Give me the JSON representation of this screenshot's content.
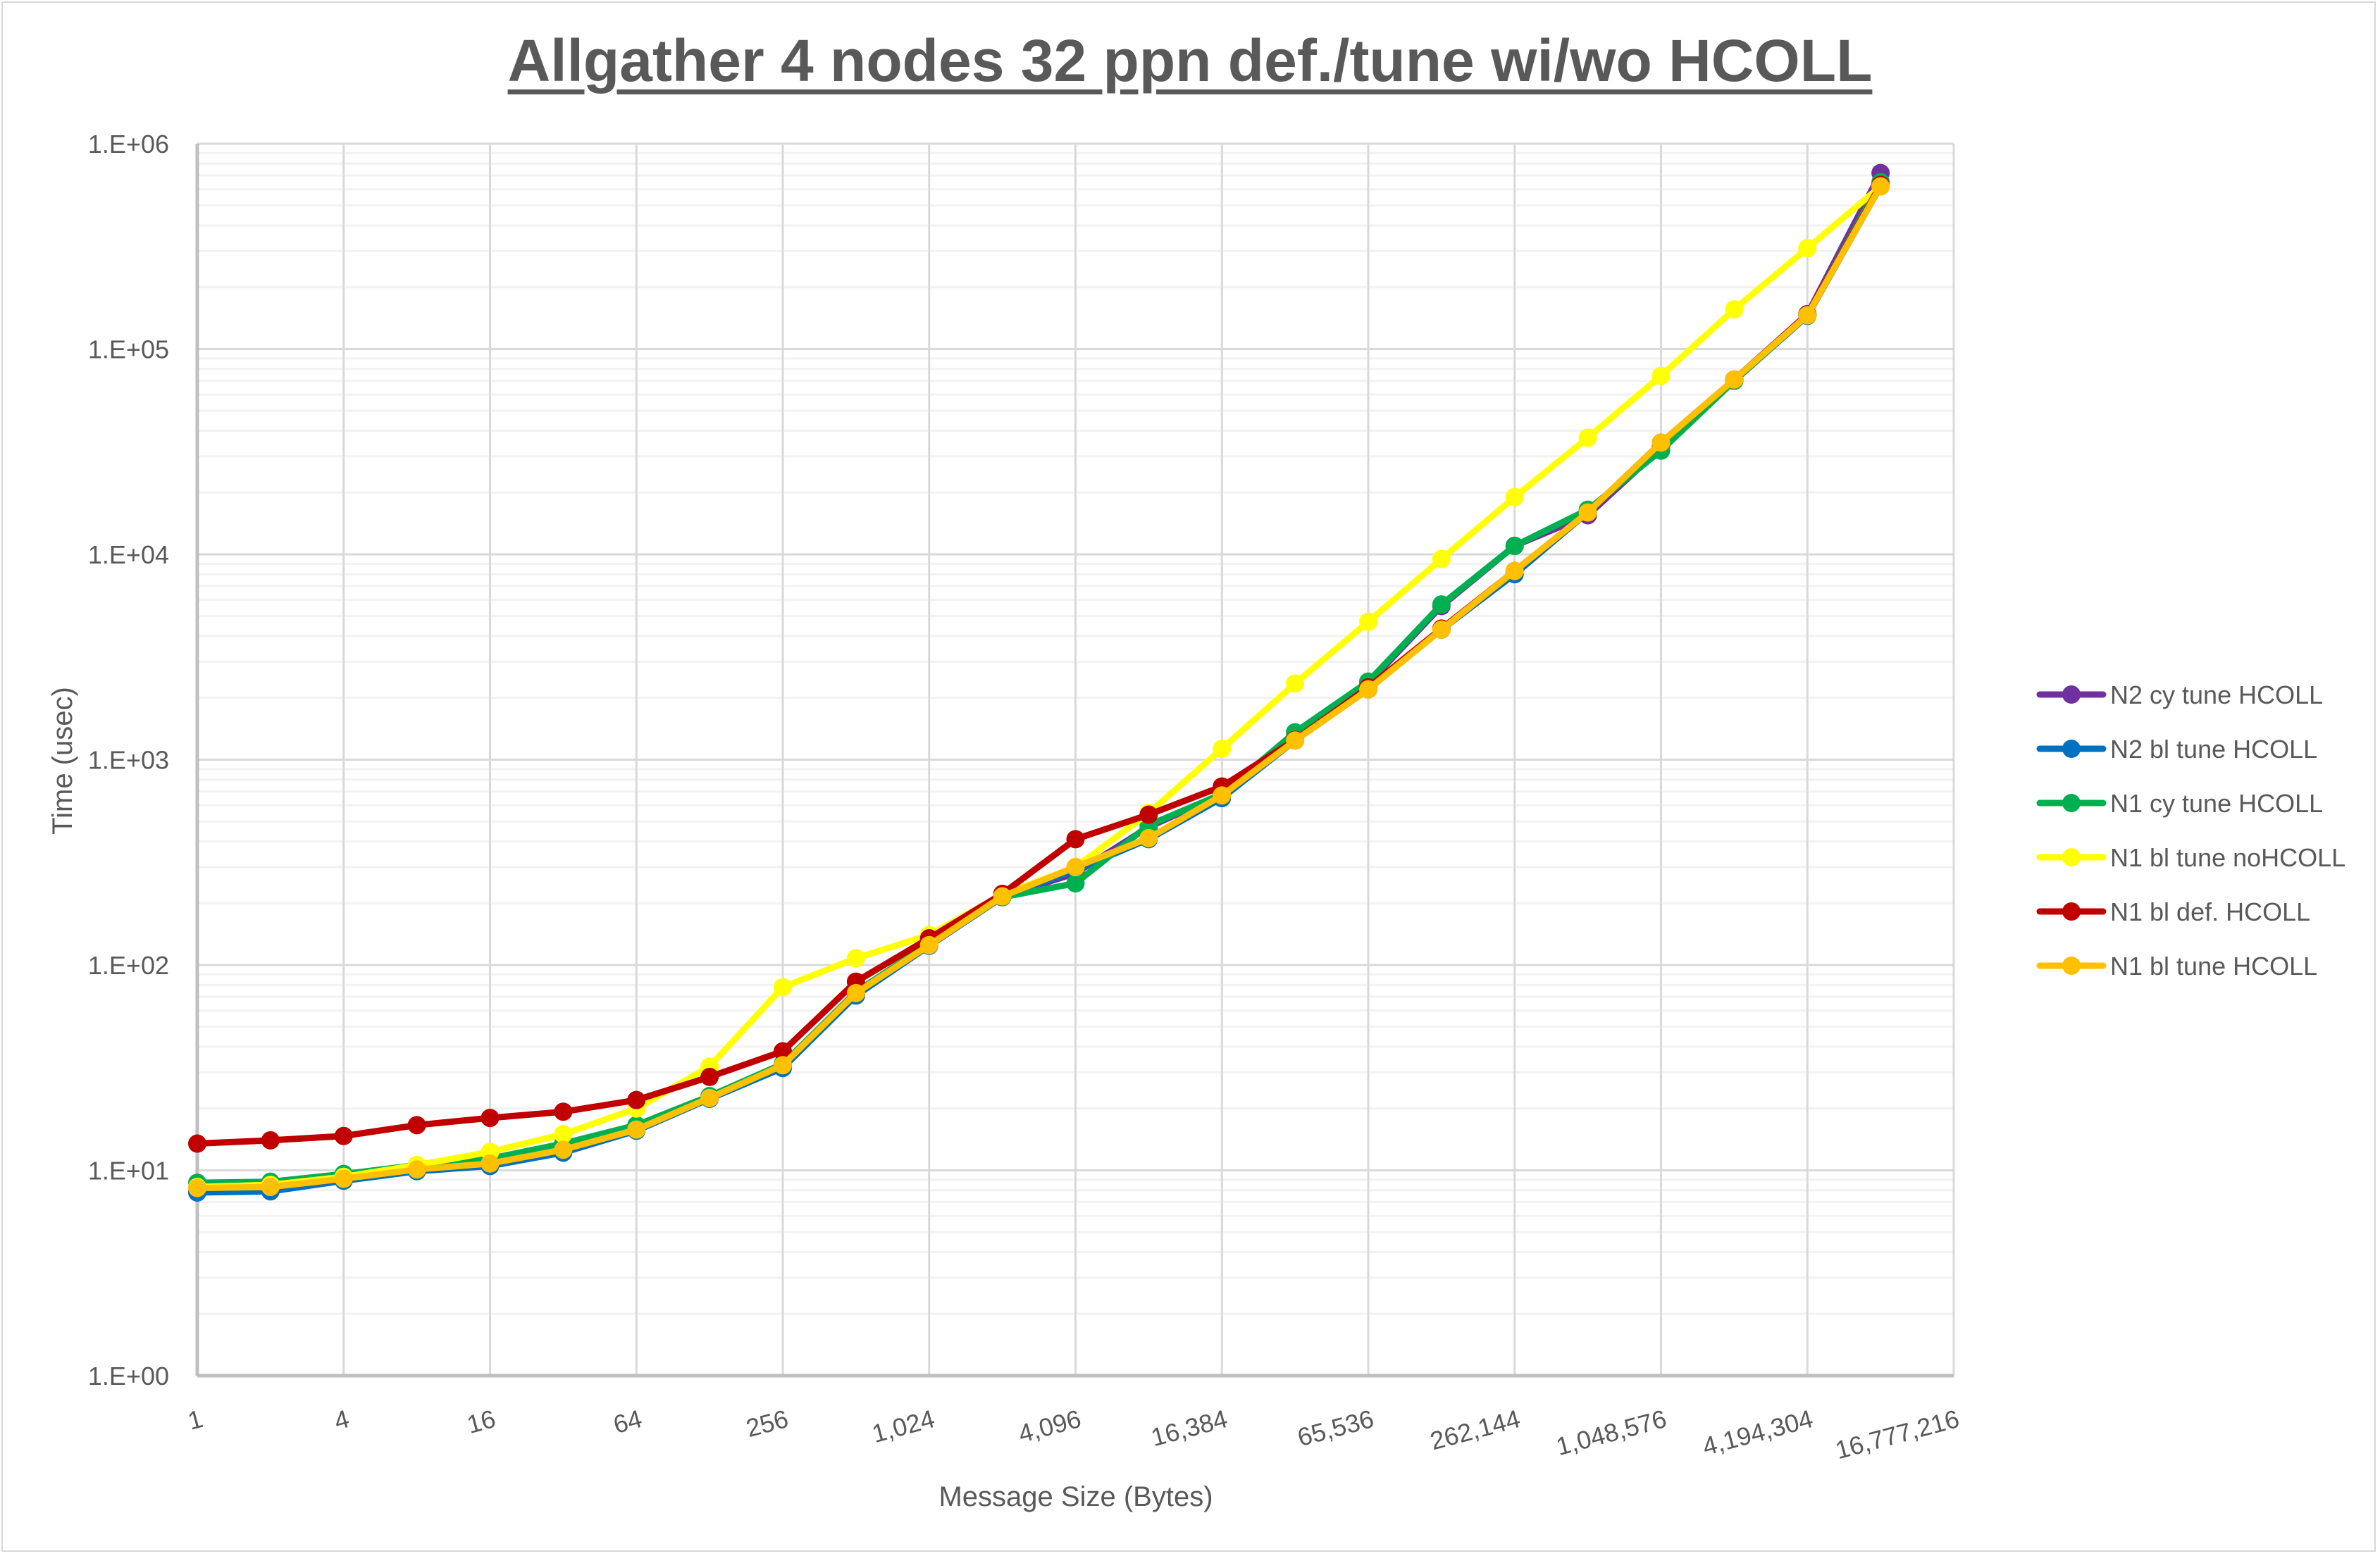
{
  "chart_data": {
    "type": "line",
    "title": "Allgather 4 nodes 32 ppn def./tune wi/wo HCOLL",
    "xlabel": "Message Size (Bytes)",
    "ylabel": "Time (usec)",
    "xscale": "log2",
    "yscale": "log10",
    "ylim": [
      1,
      1000000
    ],
    "ytick_labels": [
      "1.E+00",
      "1.E+01",
      "1.E+02",
      "1.E+03",
      "1.E+04",
      "1.E+05",
      "1.E+06"
    ],
    "xtick_labels": [
      "1",
      "4",
      "16",
      "64",
      "256",
      "1,024",
      "4,096",
      "16,384",
      "65,536",
      "262,144",
      "1,048,576",
      "4,194,304",
      "16,777,216"
    ],
    "grid": true,
    "legend_position": "right",
    "x": [
      1,
      2,
      4,
      8,
      16,
      32,
      64,
      128,
      256,
      512,
      1024,
      2048,
      4096,
      8192,
      16384,
      32768,
      65536,
      131072,
      262144,
      524288,
      1048576,
      2097152,
      4194304,
      8388608
    ],
    "series": [
      {
        "name": "N2 cy tune HCOLL",
        "color": "#7030A0",
        "values": [
          7.9,
          8.0,
          9.0,
          10.1,
          10.6,
          12.4,
          15.8,
          22.5,
          32,
          72,
          125,
          215,
          280,
          470,
          680,
          1300,
          2350,
          5600,
          11000,
          15500,
          33000,
          71000,
          148000,
          720000
        ]
      },
      {
        "name": "N2 bl tune HCOLL",
        "color": "#0070C0",
        "values": [
          7.8,
          7.9,
          8.9,
          9.9,
          10.5,
          12.2,
          15.6,
          22.3,
          31.5,
          71,
          124,
          214,
          290,
          410,
          650,
          1240,
          2200,
          4300,
          8000,
          16000,
          34000,
          70000,
          145000,
          620000
        ]
      },
      {
        "name": "N1 cy tune HCOLL",
        "color": "#00B050",
        "values": [
          8.7,
          8.8,
          9.6,
          10.6,
          11.4,
          13.5,
          16.6,
          23,
          33,
          74,
          127,
          214,
          250,
          480,
          680,
          1360,
          2400,
          5700,
          11000,
          16500,
          32000,
          70000,
          146000,
          650000
        ]
      },
      {
        "name": "N1 bl tune noHCOLL",
        "color": "#FFFF00",
        "values": [
          8.3,
          8.5,
          9.3,
          10.6,
          12.3,
          15,
          20,
          32,
          78,
          108,
          140,
          220,
          300,
          550,
          1130,
          2350,
          4700,
          9500,
          19000,
          37000,
          74000,
          156000,
          310000,
          620000
        ]
      },
      {
        "name": "N1 bl def. HCOLL",
        "color": "#C00000",
        "values": [
          13.5,
          14,
          14.7,
          16.6,
          18,
          19.3,
          22,
          28.5,
          38,
          83,
          135,
          222,
          410,
          540,
          740,
          1250,
          2250,
          4350,
          8300,
          16000,
          35000,
          71000,
          147000,
          630000
        ]
      },
      {
        "name": "N1 bl tune HCOLL",
        "color": "#FFC000",
        "values": [
          8.2,
          8.3,
          9.1,
          10.1,
          10.8,
          12.6,
          15.8,
          22.5,
          32.5,
          73,
          125,
          216,
          300,
          415,
          670,
          1240,
          2200,
          4300,
          8300,
          16000,
          35000,
          71000,
          146000,
          620000
        ]
      }
    ]
  }
}
